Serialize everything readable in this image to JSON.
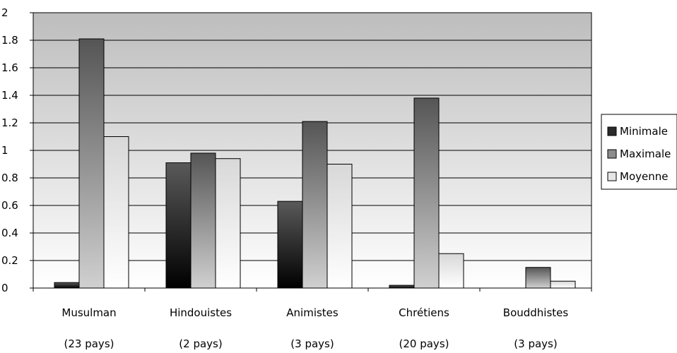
{
  "chart_data": {
    "type": "bar",
    "categories": [
      {
        "name": "Musulman",
        "count": "(23 pays)"
      },
      {
        "name": "Hindouistes",
        "count": "(2 pays)"
      },
      {
        "name": "Animistes",
        "count": "(3 pays)"
      },
      {
        "name": "Chrétiens",
        "count": "(20 pays)"
      },
      {
        "name": "Bouddhistes",
        "count": "(3 pays)"
      }
    ],
    "series": [
      {
        "name": "Minimale",
        "values": [
          0.04,
          0.91,
          0.63,
          0.02,
          0.0
        ]
      },
      {
        "name": "Maximale",
        "values": [
          1.81,
          0.98,
          1.21,
          1.38,
          0.15
        ]
      },
      {
        "name": "Moyenne",
        "values": [
          1.1,
          0.94,
          0.9,
          0.25,
          0.05
        ]
      }
    ],
    "yticks": [
      "0",
      "0.2",
      "0.4",
      "0.6",
      "0.8",
      "1",
      "1.2",
      "1.4",
      "1.6",
      "1.8",
      "2"
    ],
    "ylim": [
      0,
      2
    ],
    "grid": true,
    "legend": "right"
  }
}
